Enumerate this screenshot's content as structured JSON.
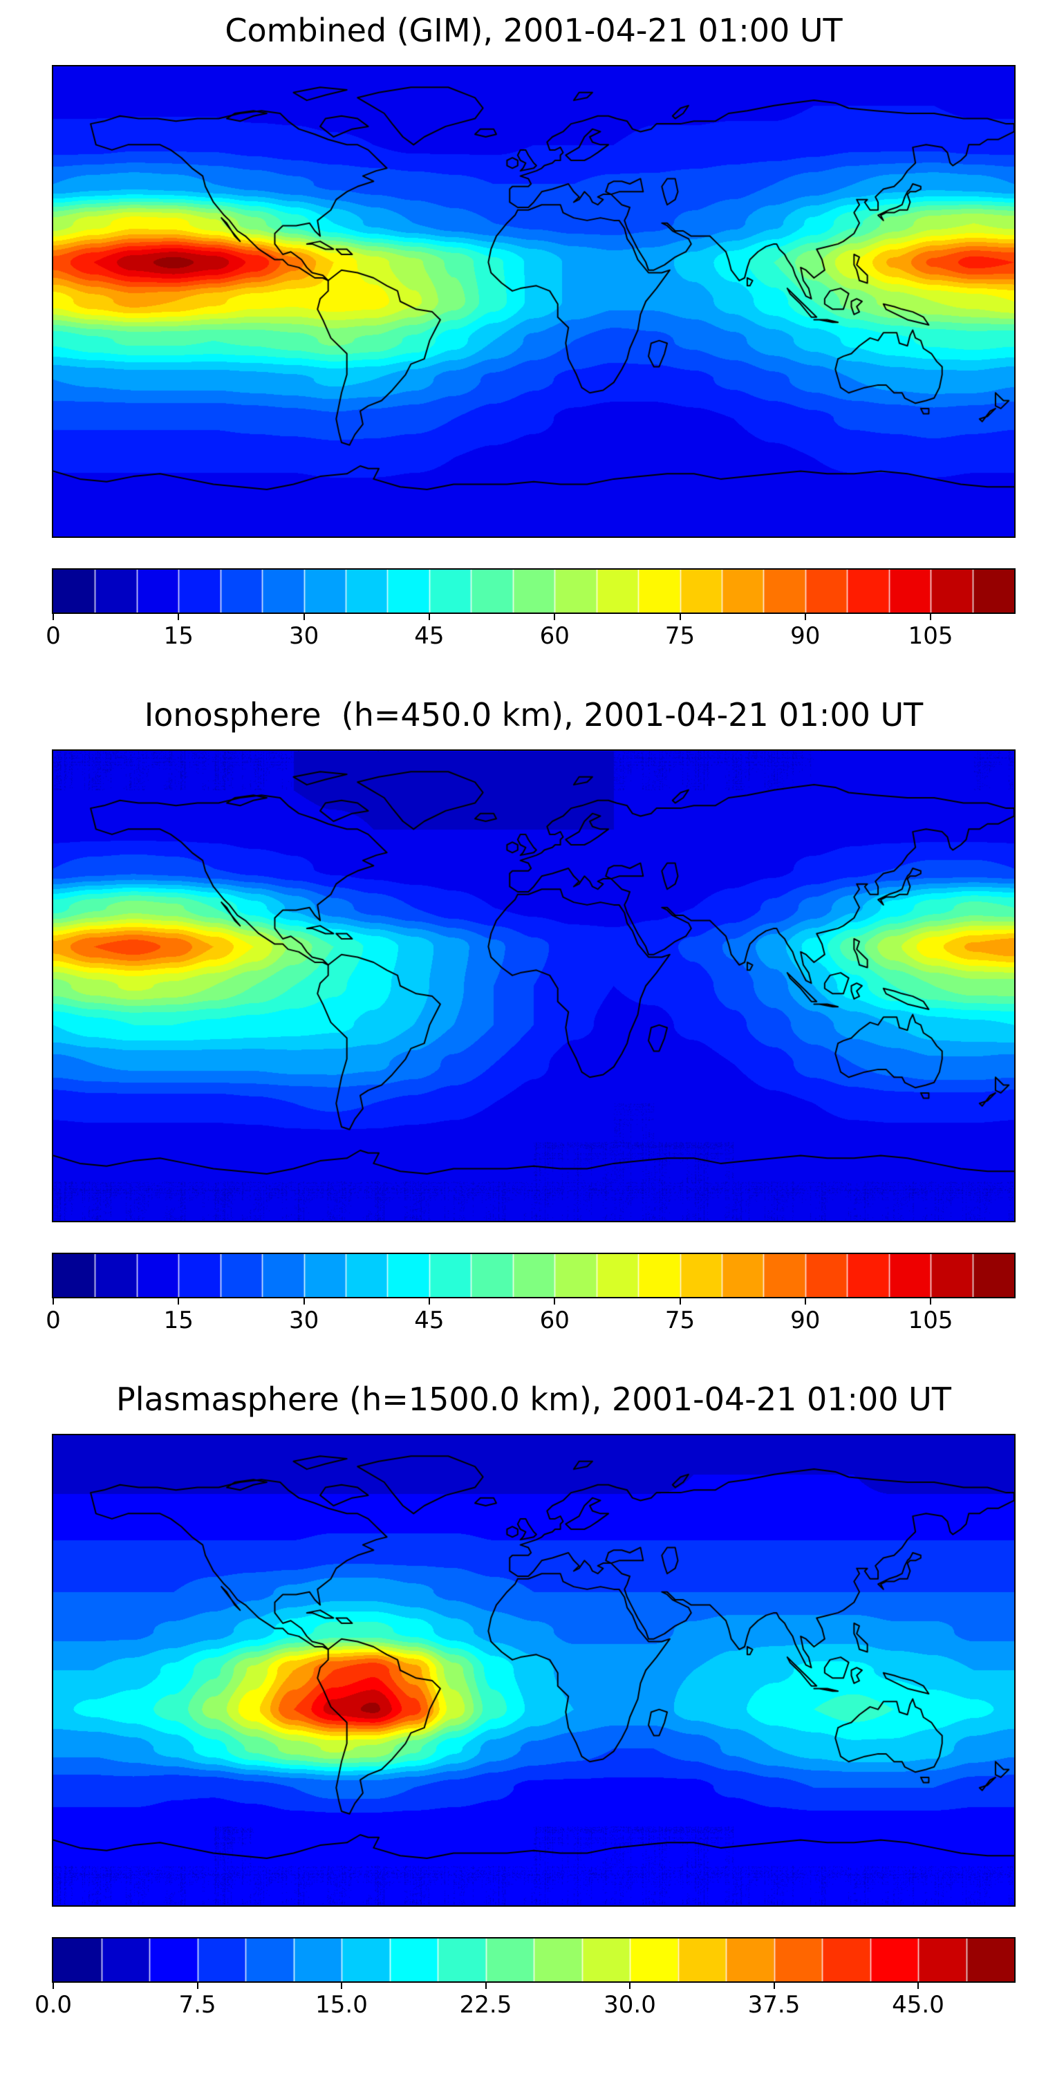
{
  "figure": {
    "background": "#ffffff",
    "colormap": "jet",
    "projection": "equirectangular"
  },
  "panels": [
    {
      "title": "Combined (GIM), 2001-04-21 01:00 UT"
    },
    {
      "title": "Ionosphere  (h=450.0 km), 2001-04-21 01:00 UT"
    },
    {
      "title": "Plasmasphere (h=1500.0 km), 2001-04-21 01:00 UT"
    }
  ],
  "chart_data": [
    {
      "type": "heatmap",
      "title": "Combined (GIM), 2001-04-21 01:00 UT",
      "colormap": "jet",
      "projection": "equirectangular",
      "lon": [
        -180,
        -165,
        -150,
        -135,
        -120,
        -105,
        -90,
        -75,
        -60,
        -45,
        -30,
        -15,
        0,
        15,
        30,
        45,
        60,
        75,
        90,
        105,
        120,
        135,
        150,
        165,
        180
      ],
      "lat": [
        90,
        75,
        60,
        45,
        30,
        15,
        0,
        -15,
        -30,
        -45,
        -60,
        -75,
        -90
      ],
      "vmin": 0,
      "vmax": 115,
      "contour_step": 5,
      "colorbar_tick_values": [
        0,
        15,
        30,
        45,
        60,
        75,
        90,
        105
      ],
      "colorbar_tick_labels": [
        "0",
        "15",
        "30",
        "45",
        "60",
        "75",
        "90",
        "105"
      ],
      "values": [
        [
          13,
          13,
          13,
          13,
          13,
          13,
          13,
          13,
          13,
          13,
          13,
          13,
          13,
          13,
          13,
          13,
          13,
          13,
          13,
          13,
          13,
          13,
          13,
          13,
          13
        ],
        [
          14,
          14,
          14,
          14,
          14,
          13,
          13,
          12,
          12,
          12,
          12,
          12,
          13,
          13,
          13,
          14,
          14,
          14,
          14,
          15,
          15,
          15,
          15,
          14,
          14
        ],
        [
          18,
          18,
          19,
          19,
          19,
          18,
          17,
          16,
          15,
          14,
          14,
          14,
          15,
          15,
          15,
          16,
          16,
          17,
          17,
          18,
          19,
          19,
          19,
          18,
          18
        ],
        [
          30,
          32,
          33,
          32,
          30,
          28,
          26,
          24,
          23,
          22,
          21,
          20,
          20,
          20,
          21,
          21,
          22,
          23,
          25,
          27,
          30,
          32,
          33,
          32,
          30
        ],
        [
          62,
          68,
          73,
          72,
          66,
          57,
          48,
          40,
          34,
          30,
          27,
          25,
          24,
          23,
          23,
          24,
          26,
          29,
          34,
          41,
          49,
          57,
          63,
          65,
          63
        ],
        [
          92,
          100,
          108,
          112,
          108,
          99,
          87,
          75,
          67,
          61,
          54,
          46,
          39,
          34,
          32,
          33,
          37,
          43,
          50,
          59,
          70,
          81,
          91,
          97,
          95
        ],
        [
          72,
          78,
          82,
          80,
          76,
          72,
          71,
          73,
          72,
          66,
          57,
          47,
          39,
          34,
          31,
          31,
          33,
          37,
          43,
          50,
          57,
          62,
          65,
          67,
          70
        ],
        [
          46,
          49,
          51,
          51,
          50,
          51,
          53,
          56,
          54,
          49,
          42,
          35,
          29,
          25,
          23,
          24,
          26,
          29,
          33,
          37,
          41,
          44,
          46,
          47,
          46
        ],
        [
          30,
          31,
          32,
          32,
          32,
          33,
          34,
          36,
          35,
          32,
          28,
          24,
          21,
          19,
          18,
          18,
          19,
          21,
          24,
          27,
          30,
          32,
          33,
          33,
          31
        ],
        [
          21,
          21,
          21,
          21,
          21,
          22,
          23,
          24,
          23,
          22,
          20,
          18,
          16,
          14,
          13,
          13,
          14,
          15,
          17,
          19,
          21,
          22,
          23,
          22,
          21
        ],
        [
          16,
          16,
          16,
          16,
          16,
          16,
          16,
          17,
          17,
          16,
          15,
          14,
          13,
          12,
          12,
          12,
          13,
          13,
          14,
          15,
          16,
          16,
          17,
          16,
          16
        ],
        [
          13,
          13,
          13,
          13,
          13,
          13,
          13,
          13,
          13,
          13,
          13,
          12,
          12,
          12,
          12,
          12,
          12,
          12,
          13,
          13,
          13,
          13,
          13,
          13,
          13
        ],
        [
          12,
          12,
          12,
          12,
          12,
          12,
          12,
          12,
          12,
          12,
          12,
          12,
          12,
          12,
          12,
          12,
          12,
          12,
          12,
          12,
          12,
          12,
          12,
          12,
          12
        ]
      ]
    },
    {
      "type": "heatmap",
      "title": "Ionosphere  (h=450.0 km), 2001-04-21 01:00 UT",
      "colormap": "jet",
      "projection": "equirectangular",
      "lon": [
        -180,
        -165,
        -150,
        -135,
        -120,
        -105,
        -90,
        -75,
        -60,
        -45,
        -30,
        -15,
        0,
        15,
        30,
        45,
        60,
        75,
        90,
        105,
        120,
        135,
        150,
        165,
        180
      ],
      "lat": [
        90,
        75,
        60,
        45,
        30,
        15,
        0,
        -15,
        -30,
        -45,
        -60,
        -75,
        -90
      ],
      "vmin": 0,
      "vmax": 115,
      "contour_step": 5,
      "colorbar_tick_values": [
        0,
        15,
        30,
        45,
        60,
        75,
        90,
        105
      ],
      "colorbar_tick_labels": [
        "0",
        "15",
        "30",
        "45",
        "60",
        "75",
        "90",
        "105"
      ],
      "values": [
        [
          10,
          10,
          10,
          10,
          10,
          10,
          10,
          10,
          10,
          10,
          10,
          10,
          10,
          10,
          10,
          10,
          10,
          10,
          10,
          10,
          10,
          10,
          10,
          10,
          10
        ],
        [
          10,
          10,
          10,
          10,
          10,
          10,
          10,
          9,
          9,
          9,
          9,
          9,
          9,
          9,
          10,
          10,
          10,
          10,
          10,
          10,
          11,
          11,
          11,
          10,
          10
        ],
        [
          13,
          13,
          13,
          13,
          13,
          12,
          12,
          11,
          10,
          10,
          10,
          10,
          10,
          10,
          10,
          11,
          11,
          11,
          12,
          12,
          13,
          13,
          13,
          13,
          13
        ],
        [
          20,
          22,
          23,
          22,
          20,
          18,
          16,
          14,
          13,
          12,
          12,
          11,
          11,
          11,
          11,
          12,
          12,
          13,
          14,
          16,
          18,
          20,
          21,
          21,
          20
        ],
        [
          48,
          54,
          58,
          56,
          50,
          42,
          34,
          27,
          23,
          20,
          17,
          15,
          14,
          13,
          13,
          14,
          15,
          17,
          21,
          27,
          34,
          42,
          48,
          52,
          50
        ],
        [
          82,
          90,
          93,
          89,
          80,
          70,
          59,
          50,
          44,
          38,
          32,
          26,
          21,
          18,
          17,
          18,
          21,
          26,
          33,
          42,
          53,
          64,
          74,
          81,
          84
        ],
        [
          58,
          63,
          66,
          64,
          60,
          55,
          50,
          46,
          42,
          37,
          31,
          25,
          20,
          17,
          15,
          16,
          18,
          22,
          28,
          35,
          43,
          50,
          55,
          58,
          58
        ],
        [
          40,
          43,
          45,
          45,
          44,
          43,
          42,
          41,
          39,
          35,
          30,
          25,
          20,
          16,
          14,
          14,
          16,
          19,
          23,
          28,
          32,
          35,
          38,
          39,
          40
        ],
        [
          28,
          30,
          31,
          31,
          31,
          31,
          32,
          32,
          31,
          28,
          24,
          20,
          16,
          13,
          12,
          12,
          13,
          15,
          18,
          22,
          25,
          27,
          29,
          29,
          28
        ],
        [
          17,
          18,
          18,
          18,
          18,
          19,
          20,
          21,
          20,
          19,
          17,
          15,
          13,
          11,
          10,
          10,
          11,
          12,
          14,
          15,
          17,
          18,
          18,
          18,
          17
        ],
        [
          12,
          12,
          12,
          12,
          12,
          12,
          13,
          13,
          13,
          12,
          12,
          11,
          10,
          10,
          10,
          10,
          10,
          10,
          11,
          11,
          12,
          12,
          12,
          12,
          12
        ],
        [
          10,
          10,
          10,
          10,
          10,
          10,
          10,
          10,
          10,
          10,
          10,
          10,
          10,
          10,
          10,
          10,
          10,
          10,
          10,
          10,
          10,
          10,
          10,
          10,
          10
        ],
        [
          10,
          10,
          10,
          10,
          10,
          10,
          10,
          10,
          10,
          10,
          10,
          10,
          10,
          10,
          10,
          10,
          10,
          10,
          10,
          10,
          10,
          10,
          10,
          10,
          10
        ]
      ]
    },
    {
      "type": "heatmap",
      "title": "Plasmasphere (h=1500.0 km), 2001-04-21 01:00 UT",
      "colormap": "jet",
      "projection": "equirectangular",
      "lon": [
        -180,
        -165,
        -150,
        -135,
        -120,
        -105,
        -90,
        -75,
        -60,
        -45,
        -30,
        -15,
        0,
        15,
        30,
        45,
        60,
        75,
        90,
        105,
        120,
        135,
        150,
        165,
        180
      ],
      "lat": [
        90,
        75,
        60,
        45,
        30,
        15,
        0,
        -15,
        -30,
        -45,
        -60,
        -75,
        -90
      ],
      "vmin": 0,
      "vmax": 50,
      "contour_step": 2.5,
      "colorbar_tick_values": [
        0,
        7.5,
        15,
        22.5,
        30,
        37.5,
        45
      ],
      "colorbar_tick_labels": [
        "0.0",
        "7.5",
        "15.0",
        "22.5",
        "30.0",
        "37.5",
        "45.0"
      ],
      "values": [
        [
          4,
          4,
          4,
          4,
          4,
          4,
          4,
          4,
          4,
          4,
          4,
          4,
          4,
          4,
          4,
          4,
          4,
          4,
          4,
          4,
          4,
          4,
          4,
          4,
          4
        ],
        [
          4,
          4,
          4,
          4,
          4,
          4,
          4,
          4,
          4,
          4,
          4,
          4,
          4,
          4,
          4,
          4,
          5,
          5,
          5,
          5,
          5,
          4,
          4,
          4,
          4
        ],
        [
          6,
          6,
          6,
          6,
          6,
          6,
          6,
          6,
          6,
          6,
          6,
          6,
          6,
          6,
          6,
          6,
          6,
          6,
          6,
          6,
          6,
          6,
          6,
          6,
          6
        ],
        [
          8,
          8,
          8,
          8,
          8,
          8,
          8,
          9,
          9,
          9,
          9,
          8,
          8,
          8,
          8,
          8,
          8,
          8,
          8,
          8,
          8,
          8,
          8,
          8,
          8
        ],
        [
          10,
          10,
          10,
          10,
          11,
          12,
          13,
          14,
          14,
          13,
          12,
          11,
          10,
          10,
          10,
          10,
          10,
          10,
          10,
          10,
          10,
          10,
          10,
          10,
          10
        ],
        [
          12,
          12,
          12,
          13,
          14,
          16,
          19,
          21,
          21,
          19,
          16,
          14,
          13,
          12,
          12,
          12,
          13,
          14,
          14,
          14,
          14,
          13,
          13,
          12,
          12
        ],
        [
          15,
          15,
          16,
          18,
          22,
          28,
          35,
          40,
          42,
          36,
          26,
          19,
          16,
          14,
          14,
          14,
          15,
          16,
          17,
          18,
          18,
          17,
          16,
          15,
          15
        ],
        [
          17,
          18,
          19,
          21,
          26,
          32,
          40,
          46,
          48,
          41,
          29,
          21,
          17,
          15,
          14,
          14,
          16,
          17,
          19,
          20,
          21,
          20,
          19,
          18,
          17
        ],
        [
          13,
          13,
          14,
          16,
          19,
          23,
          26,
          28,
          27,
          23,
          18,
          14,
          12,
          11,
          10,
          10,
          11,
          13,
          15,
          16,
          17,
          17,
          16,
          14,
          13
        ],
        [
          9,
          9,
          9,
          8,
          8,
          9,
          10,
          11,
          11,
          10,
          9,
          8,
          7,
          7,
          7,
          7,
          7,
          8,
          9,
          10,
          10,
          10,
          10,
          9,
          9
        ],
        [
          6,
          6,
          6,
          6,
          5,
          5,
          6,
          6,
          6,
          6,
          6,
          6,
          5,
          5,
          5,
          5,
          5,
          5,
          6,
          6,
          6,
          6,
          6,
          6,
          6
        ],
        [
          5,
          5,
          5,
          5,
          5,
          5,
          5,
          5,
          5,
          5,
          5,
          5,
          5,
          5,
          5,
          5,
          5,
          5,
          5,
          5,
          5,
          5,
          5,
          5,
          5
        ],
        [
          5,
          5,
          5,
          5,
          5,
          5,
          5,
          5,
          5,
          5,
          5,
          5,
          5,
          5,
          5,
          5,
          5,
          5,
          5,
          5,
          5,
          5,
          5,
          5,
          5
        ]
      ]
    }
  ]
}
